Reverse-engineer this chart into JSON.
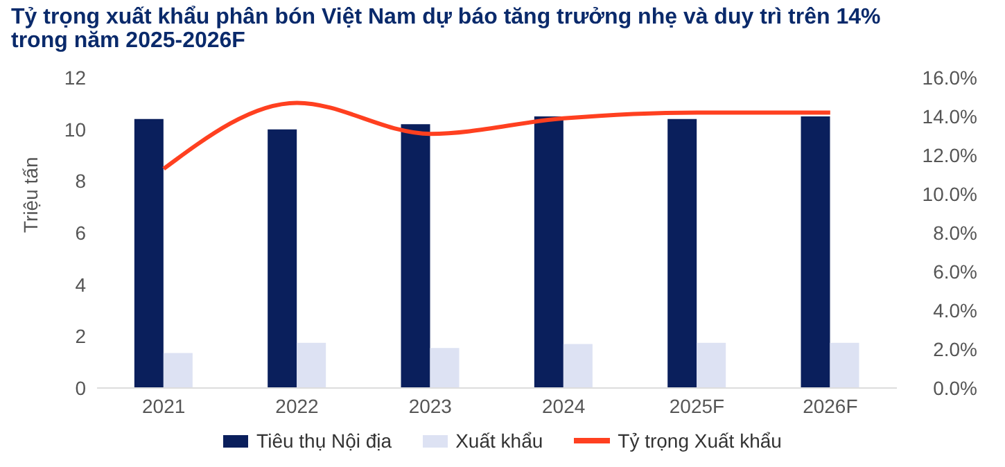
{
  "chart_data": {
    "type": "bar",
    "title": "Tỷ trọng xuất khẩu phân bón Việt Nam dự báo tăng trưởng nhẹ và duy trì trên 14% trong năm 2025-2026F",
    "ylabel": "Triệu tấn",
    "categories": [
      "2021",
      "2022",
      "2023",
      "2024",
      "2025F",
      "2026F"
    ],
    "series": [
      {
        "name": "Tiêu thụ Nội địa",
        "color": "#0a1f5c",
        "values": [
          10.4,
          10.0,
          10.2,
          10.5,
          10.4,
          10.5
        ]
      },
      {
        "name": "Xuất khẩu",
        "color": "#dde2f3",
        "values": [
          1.35,
          1.75,
          1.55,
          1.7,
          1.75,
          1.75
        ]
      },
      {
        "name": "Tỷ trọng Xuất khẩu",
        "type": "line",
        "axis": "y2",
        "color": "#ff4020",
        "values": [
          11.3,
          14.7,
          13.1,
          13.9,
          14.2,
          14.2
        ]
      }
    ],
    "ylim": [
      0,
      12
    ],
    "yticks": [
      0,
      2,
      4,
      6,
      8,
      10,
      12
    ],
    "y2lim": [
      0,
      16
    ],
    "y2ticks": [
      {
        "value": 0,
        "label": "0.0%"
      },
      {
        "value": 2,
        "label": "2.0%"
      },
      {
        "value": 4,
        "label": "4.0%"
      },
      {
        "value": 6,
        "label": "6.0%"
      },
      {
        "value": 8,
        "label": "8.0%"
      },
      {
        "value": 10,
        "label": "10.0%"
      },
      {
        "value": 12,
        "label": "12.0%"
      },
      {
        "value": 14,
        "label": "14.0%"
      },
      {
        "value": 16,
        "label": "16.0%"
      }
    ],
    "grid": false,
    "legend": "bottom",
    "marker": "none"
  }
}
